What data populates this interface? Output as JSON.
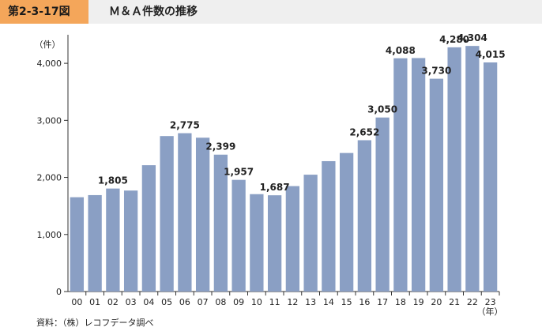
{
  "header": {
    "figure_label": "第2-3-17図",
    "title": "Ｍ＆Ａ件数の推移"
  },
  "chart_data": {
    "type": "bar",
    "categories": [
      "00",
      "01",
      "02",
      "03",
      "04",
      "05",
      "06",
      "07",
      "08",
      "09",
      "10",
      "11",
      "12",
      "13",
      "14",
      "15",
      "16",
      "17",
      "18",
      "19",
      "20",
      "21",
      "22",
      "23"
    ],
    "values": [
      1653,
      1690,
      1805,
      1770,
      2214,
      2725,
      2775,
      2696,
      2399,
      1957,
      1707,
      1687,
      1848,
      2048,
      2285,
      2428,
      2652,
      3050,
      4088,
      4092,
      3730,
      4280,
      4304,
      4015
    ],
    "data_labels": [
      "",
      "",
      "1,805",
      "",
      "",
      "",
      "2,775",
      "",
      "2,399",
      "1,957",
      "",
      "1,687",
      "",
      "",
      "",
      "",
      "2,652",
      "3,050",
      "4,088",
      "",
      "3,730",
      "4,280",
      "4,304",
      "4,015"
    ],
    "y_ticks": [
      "0",
      "1,000",
      "2,000",
      "3,000",
      "4,000"
    ],
    "ylim": [
      0,
      4500
    ],
    "y_unit": "（件）",
    "x_unit": "（年）",
    "bar_color": "#8a9fc4",
    "grid": false
  },
  "footer": {
    "source": "資料：（株）レコフデータ調べ"
  }
}
